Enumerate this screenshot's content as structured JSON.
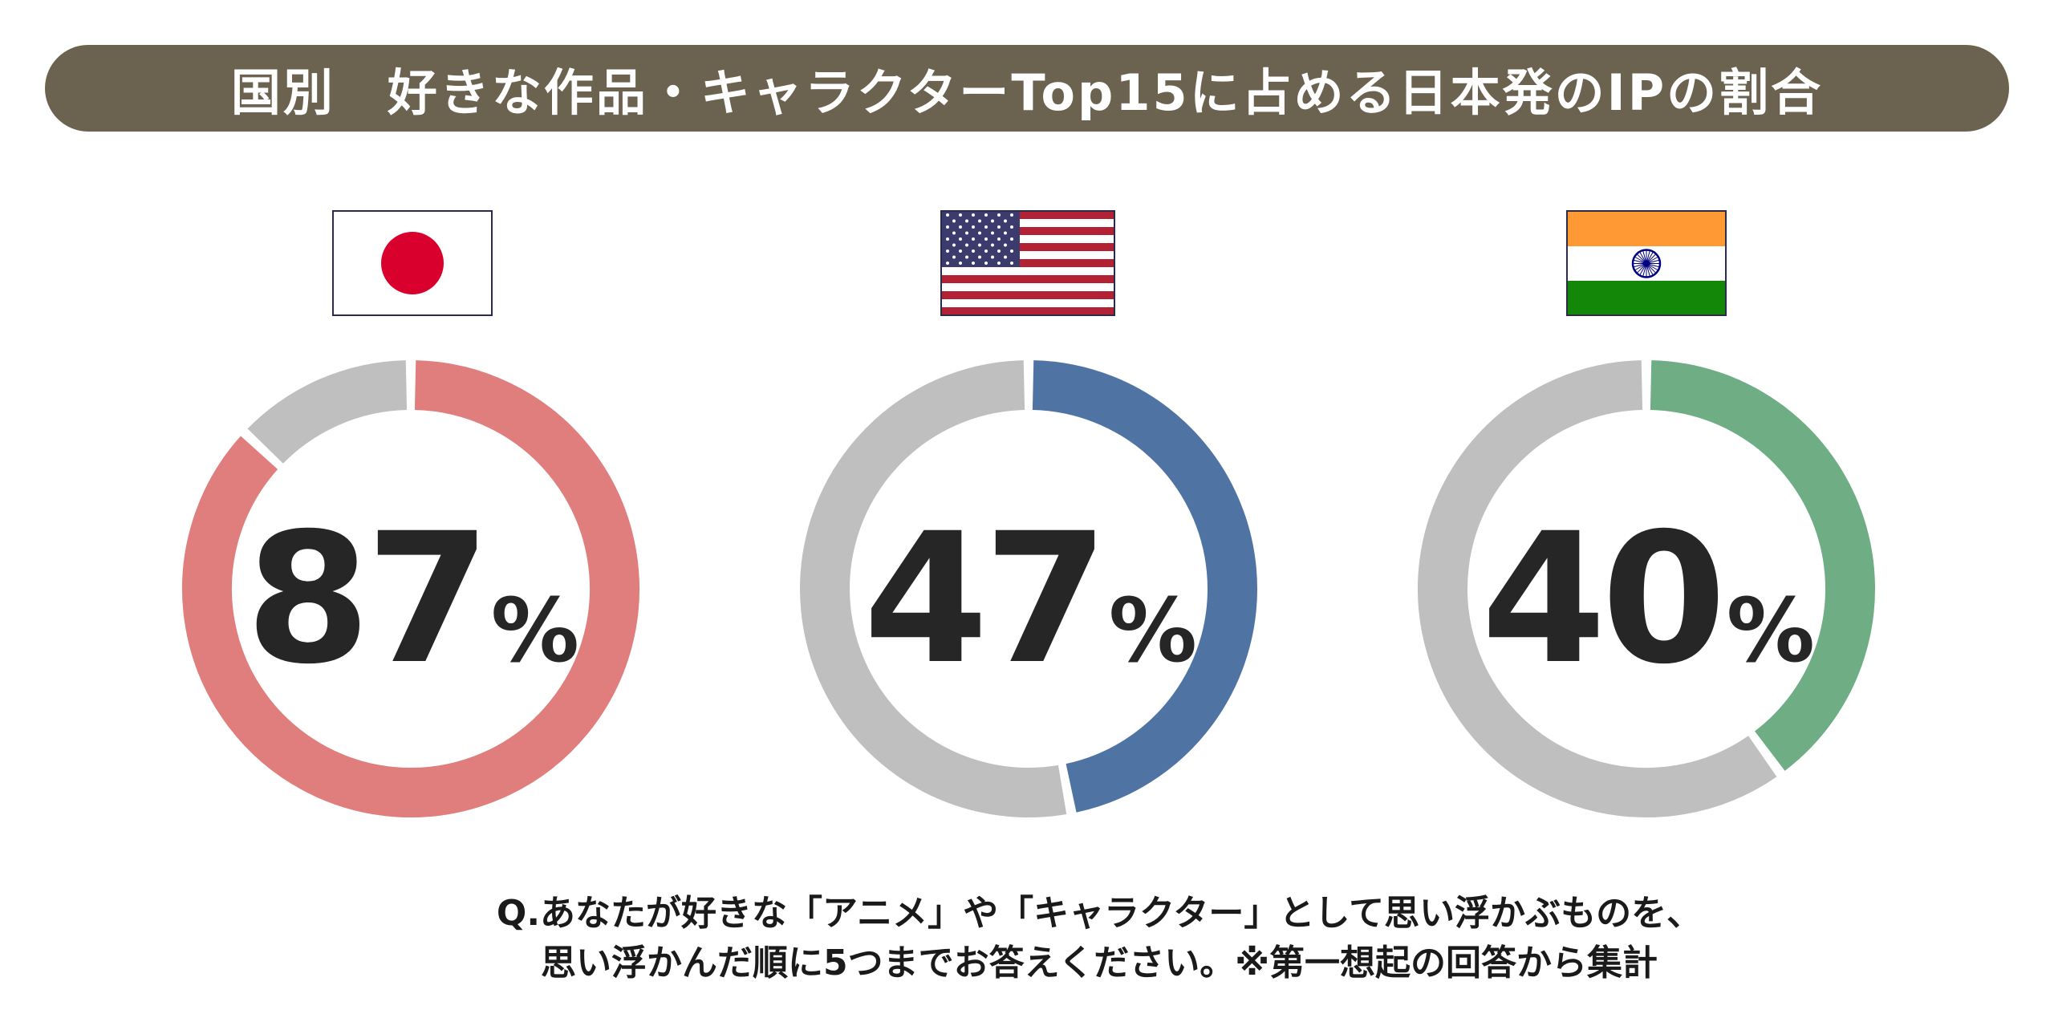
{
  "title": "国別　好きな作品・キャラクターTop15に占める日本発のIPの割合",
  "chart_data": [
    {
      "type": "pie",
      "country": "Japan",
      "flag_icon": "japan-flag-icon",
      "value": 87,
      "value_label": "87",
      "unit": "%",
      "colors": {
        "value": "#e07e7e",
        "rest": "#bfbfbf"
      }
    },
    {
      "type": "pie",
      "country": "United States",
      "flag_icon": "usa-flag-icon",
      "value": 47,
      "value_label": "47",
      "unit": "%",
      "colors": {
        "value": "#4f74a3",
        "rest": "#bfbfbf"
      }
    },
    {
      "type": "pie",
      "country": "India",
      "flag_icon": "india-flag-icon",
      "value": 40,
      "value_label": "40",
      "unit": "%",
      "colors": {
        "value": "#6fae84",
        "rest": "#bfbfbf"
      }
    }
  ],
  "question": {
    "line1": "Q.あなたが好きな「アニメ」や「キャラクター」として思い浮かぶものを、",
    "line2": "思い浮かんだ順に5つまでお答えください。※第一想起の回答から集計"
  },
  "colors": {
    "banner": "#6b6250",
    "banner_text": "#ffffff",
    "value_text": "#262626"
  }
}
